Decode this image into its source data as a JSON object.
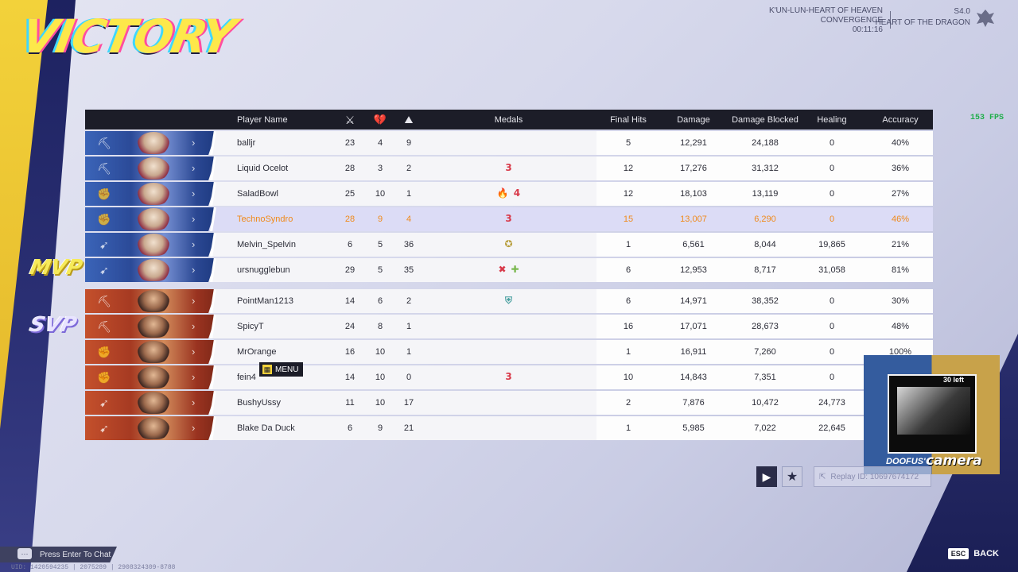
{
  "result": "VICTORY",
  "match": {
    "map": "K'UN-LUN-HEART OF HEAVEN",
    "mode": "CONVERGENCE",
    "time": "00:11:16",
    "season": "S4.0",
    "season_name": "HEART OF THE DRAGON"
  },
  "fps": "153 FPS",
  "headers": {
    "player_name": "Player Name",
    "medals": "Medals",
    "final_hits": "Final Hits",
    "damage": "Damage",
    "damage_blocked": "Damage Blocked",
    "healing": "Healing",
    "accuracy": "Accuracy"
  },
  "team_blue": [
    {
      "name": "balljr",
      "k": "23",
      "d": "4",
      "a": "9",
      "medals": [],
      "final_hits": "5",
      "damage": "12,291",
      "blocked": "24,188",
      "healing": "0",
      "accuracy": "40%",
      "role": "vanguard"
    },
    {
      "name": "Liquid Ocelot",
      "k": "28",
      "d": "3",
      "a": "2",
      "medals": [
        "3"
      ],
      "final_hits": "12",
      "damage": "17,276",
      "blocked": "31,312",
      "healing": "0",
      "accuracy": "36%",
      "role": "vanguard"
    },
    {
      "name": "SaladBowl",
      "k": "25",
      "d": "10",
      "a": "1",
      "medals": [
        "🔥",
        "4"
      ],
      "final_hits": "12",
      "damage": "18,103",
      "blocked": "13,119",
      "healing": "0",
      "accuracy": "27%",
      "role": "duelist"
    },
    {
      "name": "TechnoSyndro",
      "k": "28",
      "d": "9",
      "a": "4",
      "medals": [
        "3"
      ],
      "final_hits": "15",
      "damage": "13,007",
      "blocked": "6,290",
      "healing": "0",
      "accuracy": "46%",
      "role": "duelist",
      "highlight": true
    },
    {
      "name": "Melvin_Spelvin",
      "k": "6",
      "d": "5",
      "a": "36",
      "medals": [
        "✪"
      ],
      "final_hits": "1",
      "damage": "6,561",
      "blocked": "8,044",
      "healing": "19,865",
      "accuracy": "21%",
      "role": "strategist"
    },
    {
      "name": "ursnugglebun",
      "k": "29",
      "d": "5",
      "a": "35",
      "medals": [
        "✖",
        "✚"
      ],
      "final_hits": "6",
      "damage": "12,953",
      "blocked": "8,717",
      "healing": "31,058",
      "accuracy": "81%",
      "role": "strategist"
    }
  ],
  "team_red": [
    {
      "name": "PointMan1213",
      "k": "14",
      "d": "6",
      "a": "2",
      "medals": [
        "⛨"
      ],
      "final_hits": "6",
      "damage": "14,971",
      "blocked": "38,352",
      "healing": "0",
      "accuracy": "30%",
      "role": "vanguard"
    },
    {
      "name": "SpicyT",
      "k": "24",
      "d": "8",
      "a": "1",
      "medals": [],
      "final_hits": "16",
      "damage": "17,071",
      "blocked": "28,673",
      "healing": "0",
      "accuracy": "48%",
      "role": "vanguard"
    },
    {
      "name": "MrOrange",
      "k": "16",
      "d": "10",
      "a": "1",
      "medals": [],
      "final_hits": "1",
      "damage": "16,911",
      "blocked": "7,260",
      "healing": "0",
      "accuracy": "100%",
      "role": "duelist"
    },
    {
      "name": "fein4",
      "k": "14",
      "d": "10",
      "a": "0",
      "medals": [
        "3"
      ],
      "final_hits": "10",
      "damage": "14,843",
      "blocked": "7,351",
      "healing": "0",
      "accuracy": "",
      "role": "duelist"
    },
    {
      "name": "BushyUssy",
      "k": "11",
      "d": "10",
      "a": "17",
      "medals": [],
      "final_hits": "2",
      "damage": "7,876",
      "blocked": "10,472",
      "healing": "24,773",
      "accuracy": "",
      "role": "strategist"
    },
    {
      "name": "Blake Da Duck",
      "k": "6",
      "d": "9",
      "a": "21",
      "medals": [],
      "final_hits": "1",
      "damage": "5,985",
      "blocked": "7,022",
      "healing": "22,645",
      "accuracy": "",
      "role": "strategist"
    }
  ],
  "badges": {
    "mvp": "MVP",
    "svp": "SVP"
  },
  "menu_tip": "MENU",
  "camera": {
    "label": "DOOFUS'",
    "label2": "camera",
    "overlay": "30 left"
  },
  "replay_id": "Replay ID: 10697674172",
  "chat_hint": "Press Enter To Chat",
  "uid_line": "UID: 1420594235 | 2075289 | 2908324309-8788",
  "back": {
    "key": "ESC",
    "label": "BACK"
  },
  "colors": {
    "highlight_text": "#f08a1a",
    "blue_team": "#3b64b8",
    "red_team": "#c4502c",
    "victory": "#fde84a"
  }
}
